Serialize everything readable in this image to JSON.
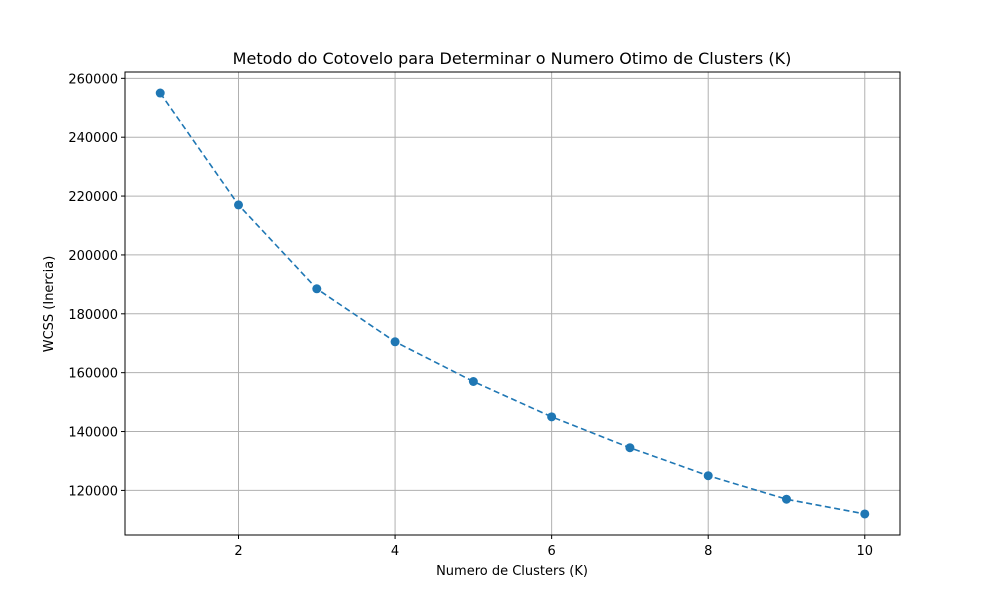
{
  "chart_data": {
    "type": "line",
    "title": "Metodo do Cotovelo para Determinar o Numero Otimo de Clusters (K)",
    "xlabel": "Numero de Clusters (K)",
    "ylabel": "WCSS (Inercia)",
    "x": [
      1,
      2,
      3,
      4,
      5,
      6,
      7,
      8,
      9,
      10
    ],
    "series": [
      {
        "values": [
          255000,
          217000,
          188500,
          170500,
          157000,
          145000,
          134500,
          125000,
          117000,
          112000
        ],
        "color": "#1f77b4",
        "line_style": "dashed",
        "marker": "circle"
      }
    ],
    "xlim": [
      0.55,
      10.45
    ],
    "ylim": [
      104850,
      262150
    ],
    "xticks": [
      2,
      4,
      6,
      8,
      10
    ],
    "yticks": [
      120000,
      140000,
      160000,
      180000,
      200000,
      220000,
      240000,
      260000
    ],
    "grid": true,
    "legend": "none"
  }
}
